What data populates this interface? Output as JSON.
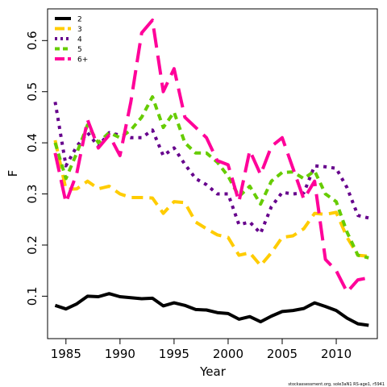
{
  "chart_data": {
    "type": "line",
    "title": "",
    "xlabel": "Year",
    "ylabel": "F",
    "xlim": [
      1983.3,
      2013.8
    ],
    "ylim": [
      0.017,
      0.662
    ],
    "xticks": [
      1985,
      1990,
      1995,
      2000,
      2005,
      2010
    ],
    "yticks": [
      0.1,
      0.2,
      0.3,
      0.4,
      0.5,
      0.6
    ],
    "ytick_labels": [
      "0.1",
      "0.2",
      "0.3",
      "0.4",
      "0.5",
      "0.6"
    ],
    "legend_position": "top-left",
    "footnote": "stockassessment.org, sole3aN1 RS-age1, r5941",
    "x": [
      1984,
      1985,
      1986,
      1987,
      1988,
      1989,
      1990,
      1991,
      1992,
      1993,
      1994,
      1995,
      1996,
      1997,
      1998,
      1999,
      2000,
      2001,
      2002,
      2003,
      2004,
      2005,
      2006,
      2007,
      2008,
      2009,
      2010,
      2011,
      2012,
      2013
    ],
    "series": [
      {
        "name": "2",
        "color": "#000000",
        "dash": "solid",
        "values": [
          0.082,
          0.075,
          0.085,
          0.1,
          0.099,
          0.105,
          0.099,
          0.097,
          0.095,
          0.096,
          0.081,
          0.087,
          0.082,
          0.074,
          0.073,
          0.068,
          0.066,
          0.055,
          0.06,
          0.05,
          0.061,
          0.07,
          0.072,
          0.076,
          0.087,
          0.08,
          0.072,
          0.057,
          0.046,
          0.043
        ]
      },
      {
        "name": "3",
        "color": "#FFCC00",
        "dash": "dash",
        "values": [
          0.405,
          0.309,
          0.31,
          0.325,
          0.31,
          0.315,
          0.3,
          0.293,
          0.293,
          0.292,
          0.262,
          0.285,
          0.283,
          0.245,
          0.232,
          0.22,
          0.215,
          0.18,
          0.185,
          0.16,
          0.185,
          0.215,
          0.218,
          0.232,
          0.262,
          0.26,
          0.264,
          0.215,
          0.18,
          0.178
        ]
      },
      {
        "name": "4",
        "color": "#66008C",
        "dash": "dot",
        "values": [
          0.48,
          0.355,
          0.393,
          0.42,
          0.393,
          0.42,
          0.415,
          0.41,
          0.41,
          0.425,
          0.375,
          0.39,
          0.358,
          0.33,
          0.318,
          0.3,
          0.3,
          0.24,
          0.245,
          0.223,
          0.275,
          0.303,
          0.3,
          0.302,
          0.355,
          0.353,
          0.35,
          0.312,
          0.258,
          0.253
        ]
      },
      {
        "name": "5",
        "color": "#66CC00",
        "dash": "dash-short",
        "values": [
          0.4,
          0.33,
          0.38,
          0.435,
          0.4,
          0.42,
          0.41,
          0.425,
          0.45,
          0.49,
          0.43,
          0.46,
          0.4,
          0.38,
          0.38,
          0.362,
          0.335,
          0.295,
          0.315,
          0.28,
          0.325,
          0.342,
          0.343,
          0.33,
          0.345,
          0.3,
          0.285,
          0.225,
          0.18,
          0.175
        ]
      },
      {
        "name": "6+",
        "color": "#FF0099",
        "dash": "longdash",
        "values": [
          0.38,
          0.283,
          0.34,
          0.445,
          0.39,
          0.415,
          0.375,
          0.48,
          0.615,
          0.64,
          0.5,
          0.545,
          0.45,
          0.43,
          0.41,
          0.365,
          0.357,
          0.285,
          0.385,
          0.338,
          0.393,
          0.41,
          0.35,
          0.29,
          0.325,
          0.172,
          0.15,
          0.108,
          0.132,
          0.136
        ]
      }
    ]
  }
}
